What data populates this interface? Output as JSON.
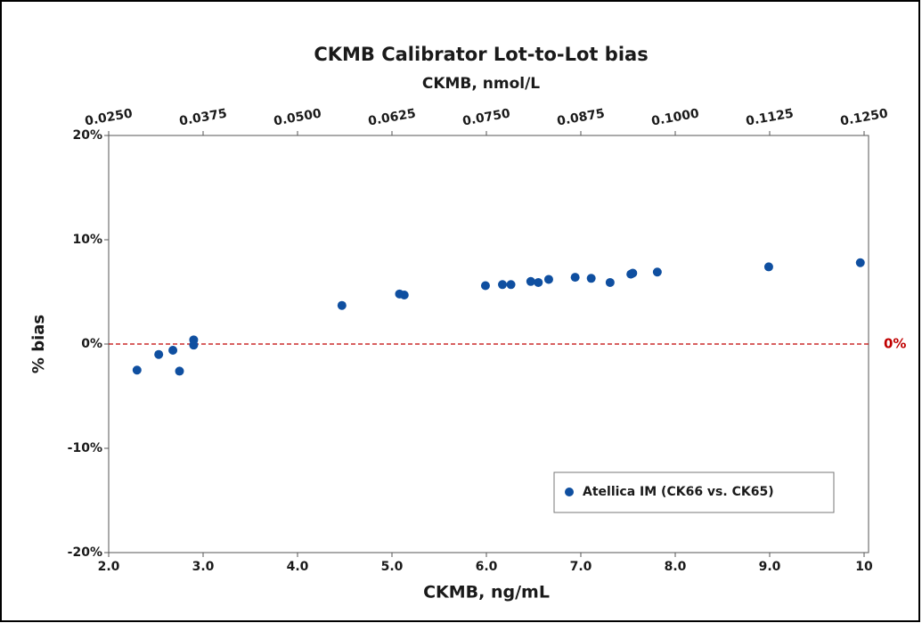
{
  "chart_data": {
    "type": "scatter",
    "title": "CKMB Calibrator Lot-to-Lot bias",
    "x_label": "CKMB, ng/mL",
    "x2_label": "CKMB, nmol/L",
    "y_label": "% bias",
    "xlim": [
      2.0,
      10
    ],
    "xticks": [
      {
        "value": 2.0,
        "label": "2.0"
      },
      {
        "value": 3.0,
        "label": "3.0"
      },
      {
        "value": 4.0,
        "label": "4.0"
      },
      {
        "value": 5.0,
        "label": "5.0"
      },
      {
        "value": 6.0,
        "label": "6.0"
      },
      {
        "value": 7.0,
        "label": "7.0"
      },
      {
        "value": 8.0,
        "label": "8.0"
      },
      {
        "value": 9.0,
        "label": "9.0"
      },
      10
    ],
    "x2lim": [
      0.025,
      0.125
    ],
    "x2ticks": [
      {
        "value": 0.025,
        "label": "0.0250"
      },
      {
        "value": 0.0375,
        "label": "0.0375"
      },
      {
        "value": 0.05,
        "label": "0.0500"
      },
      {
        "value": 0.0625,
        "label": "0.0625"
      },
      {
        "value": 0.075,
        "label": "0.0750"
      },
      {
        "value": 0.0875,
        "label": "0.0875"
      },
      {
        "value": 0.1,
        "label": "0.1000"
      },
      {
        "value": 0.1125,
        "label": "0.1125"
      },
      {
        "value": 0.125,
        "label": "0.1250"
      }
    ],
    "ylim": [
      -20,
      20
    ],
    "yticks": [
      {
        "value": -20,
        "label": "-20%"
      },
      {
        "value": -10,
        "label": "-10%"
      },
      {
        "value": 0,
        "label": "0%"
      },
      {
        "value": 10,
        "label": "10%"
      },
      {
        "value": 20,
        "label": "20%"
      }
    ],
    "reference_line": {
      "value": 0,
      "label": "0%",
      "color": "#c00000"
    },
    "legend": "lower right",
    "series": [
      {
        "name": "Atellica IM (CK66 vs. CK65)",
        "color": "#0f4fa0",
        "x": [
          2.3,
          2.53,
          2.68,
          2.75,
          2.9,
          2.9,
          4.47,
          5.08,
          5.13,
          5.99,
          6.17,
          6.26,
          6.47,
          6.55,
          6.66,
          6.94,
          7.11,
          7.31,
          7.53,
          7.55,
          7.81,
          8.99,
          9.96
        ],
        "values": [
          -2.5,
          -1.0,
          -0.6,
          -2.6,
          0.4,
          -0.1,
          3.7,
          4.8,
          4.7,
          5.6,
          5.7,
          5.7,
          6.0,
          5.9,
          6.2,
          6.4,
          6.3,
          5.9,
          6.7,
          6.8,
          6.9,
          7.4,
          7.8
        ]
      }
    ]
  }
}
